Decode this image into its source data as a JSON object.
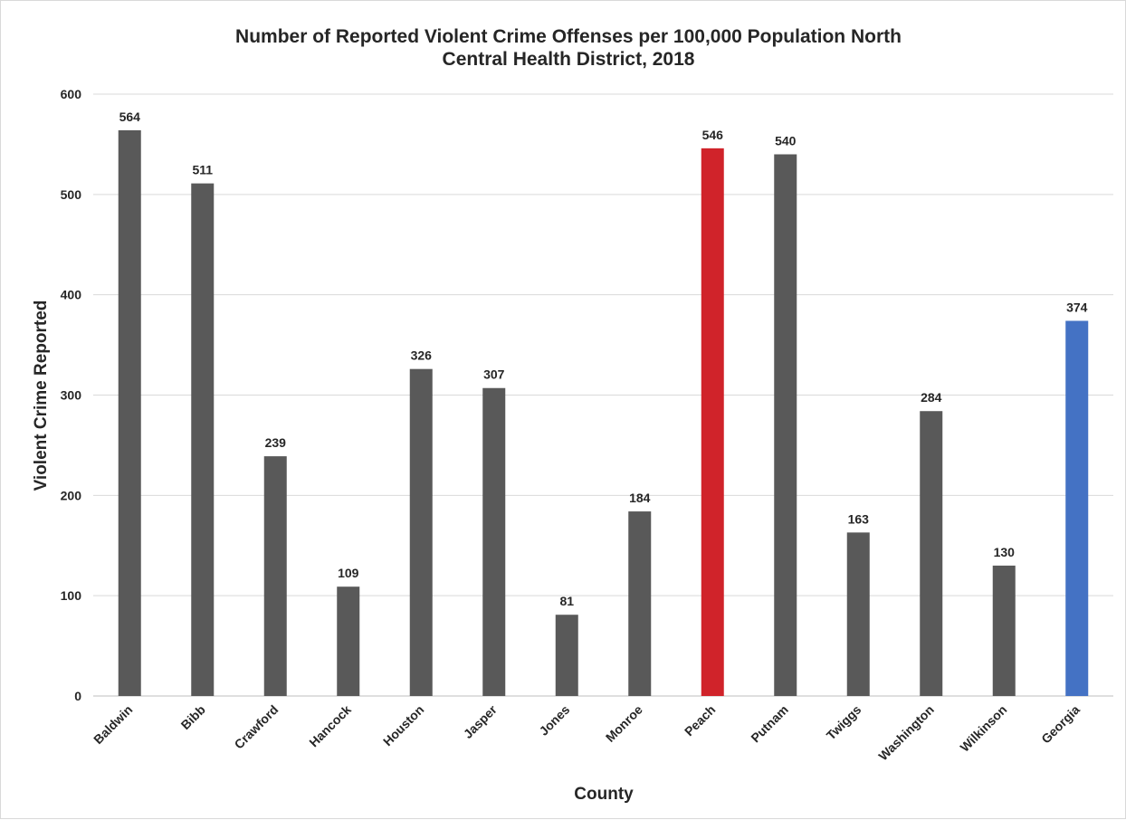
{
  "chart_data": {
    "type": "bar",
    "title_lines": [
      "Number of Reported Violent Crime Offenses per 100,000 Population North",
      "Central Health District, 2018"
    ],
    "xlabel": "County",
    "ylabel": "Violent Crime Reported",
    "ylim": [
      0,
      600
    ],
    "yticks": [
      0,
      100,
      200,
      300,
      400,
      500,
      600
    ],
    "grid": true,
    "legend": "none",
    "categories": [
      "Baldwin",
      "Bibb",
      "Crawford",
      "Hancock",
      "Houston",
      "Jasper",
      "Jones",
      "Monroe",
      "Peach",
      "Putnam",
      "Twiggs",
      "Washington",
      "Wilkinson",
      "Georgia"
    ],
    "values": [
      564,
      511,
      239,
      109,
      326,
      307,
      81,
      184,
      546,
      540,
      163,
      284,
      130,
      374
    ],
    "bar_colors": [
      "#595959",
      "#595959",
      "#595959",
      "#595959",
      "#595959",
      "#595959",
      "#595959",
      "#595959",
      "#d0232a",
      "#595959",
      "#595959",
      "#595959",
      "#595959",
      "#4472c4"
    ]
  }
}
